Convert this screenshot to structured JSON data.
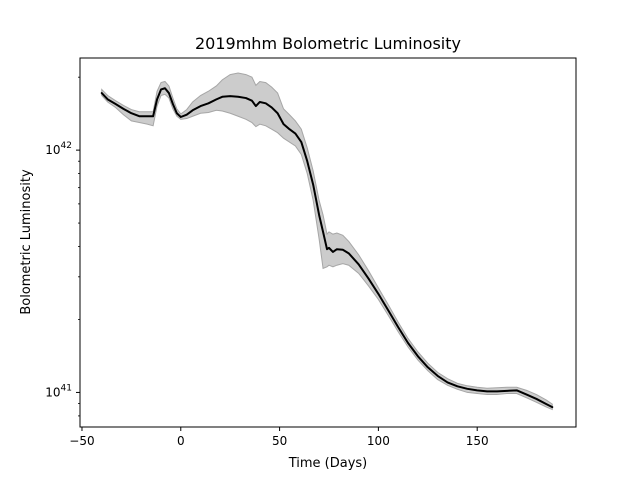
{
  "chart_data": {
    "type": "line",
    "title": "2019mhm Bolometric Luminosity",
    "xlabel": "Time (Days)",
    "ylabel": "Bolometric Luminosity",
    "xlim": [
      -51,
      200
    ],
    "ylim": [
      7.2e+40,
      2.4e+42
    ],
    "yscale": "log",
    "x_ticks": [
      -50,
      0,
      50,
      100,
      150
    ],
    "y_ticks": [
      {
        "value": 1e+41,
        "base": "10",
        "exp": "41"
      },
      {
        "value": 1e+42,
        "base": "10",
        "exp": "42"
      }
    ],
    "grid": false,
    "line_color": "#000000",
    "band_color": "#cccccc",
    "band_edge_color": "#a6a6a6",
    "series": [
      {
        "x": [
          -40,
          -37,
          -33,
          -29,
          -25,
          -21,
          -17,
          -14,
          -12,
          -10,
          -8,
          -6,
          -4,
          -2,
          0,
          3,
          6,
          10,
          14,
          18,
          21,
          25,
          29,
          33,
          36,
          38,
          40,
          43,
          46,
          49,
          52,
          55,
          58,
          61,
          64,
          67,
          70,
          72,
          74,
          75,
          77,
          79,
          82,
          85,
          90,
          95,
          100,
          105,
          110,
          115,
          120,
          125,
          130,
          135,
          140,
          145,
          150,
          155,
          160,
          165,
          170,
          175,
          180,
          185,
          188
        ],
        "y": [
          1.72e+42,
          1.62e+42,
          1.55e+42,
          1.48e+42,
          1.42e+42,
          1.38e+42,
          1.38e+42,
          1.38e+42,
          1.62e+42,
          1.78e+42,
          1.8e+42,
          1.72e+42,
          1.55e+42,
          1.42e+42,
          1.37e+42,
          1.4e+42,
          1.46e+42,
          1.52e+42,
          1.56e+42,
          1.62e+42,
          1.66e+42,
          1.67e+42,
          1.66e+42,
          1.64e+42,
          1.6e+42,
          1.52e+42,
          1.58e+42,
          1.56e+42,
          1.5e+42,
          1.42e+42,
          1.28e+42,
          1.22e+42,
          1.17e+42,
          1.08e+42,
          9e+41,
          7.2e+41,
          5.4e+41,
          4.6e+41,
          3.9e+41,
          3.95e+41,
          3.8e+41,
          3.9e+41,
          3.88e+41,
          3.75e+41,
          3.38e+41,
          2.95e+41,
          2.55e+41,
          2.18e+41,
          1.86e+41,
          1.6e+41,
          1.41e+41,
          1.27e+41,
          1.17e+41,
          1.1e+41,
          1.06e+41,
          1.035e+41,
          1.02e+41,
          1.01e+41,
          1.01e+41,
          1.015e+41,
          1.02e+41,
          9.8e+40,
          9.4e+40,
          8.95e+40,
          8.7e+40
        ],
        "lower": [
          1.68e+42,
          1.58e+42,
          1.5e+42,
          1.4e+42,
          1.32e+42,
          1.3e+42,
          1.28e+42,
          1.26e+42,
          1.52e+42,
          1.68e+42,
          1.7e+42,
          1.64e+42,
          1.48e+42,
          1.38e+42,
          1.34e+42,
          1.35e+42,
          1.38e+42,
          1.42e+42,
          1.43e+42,
          1.46e+42,
          1.45e+42,
          1.42e+42,
          1.38e+42,
          1.34e+42,
          1.3e+42,
          1.25e+42,
          1.28e+42,
          1.26e+42,
          1.22e+42,
          1.18e+42,
          1.12e+42,
          1.08e+42,
          1.04e+42,
          9.6e+41,
          8e+41,
          6.2e+41,
          4.3e+41,
          3.25e+41,
          3.3e+41,
          3.35e+41,
          3.3e+41,
          3.35e+41,
          3.4e+41,
          3.35e+41,
          3.1e+41,
          2.75e+41,
          2.42e+41,
          2.08e+41,
          1.78e+41,
          1.54e+41,
          1.36e+41,
          1.23e+41,
          1.13e+41,
          1.07e+41,
          1.03e+41,
          1e+41,
          9.9e+40,
          9.8e+40,
          9.8e+40,
          9.9e+40,
          9.9e+40,
          9.5e+40,
          9.1e+40,
          8.7e+40,
          8.5e+40
        ],
        "upper": [
          1.78e+42,
          1.68e+42,
          1.6e+42,
          1.53e+42,
          1.47e+42,
          1.44e+42,
          1.44e+42,
          1.44e+42,
          1.75e+42,
          1.9e+42,
          1.92e+42,
          1.84e+42,
          1.64e+42,
          1.48e+42,
          1.41e+42,
          1.47e+42,
          1.58e+42,
          1.68e+42,
          1.75e+42,
          1.84e+42,
          1.95e+42,
          2.05e+42,
          2.08e+42,
          2.05e+42,
          2e+42,
          1.85e+42,
          1.92e+42,
          1.9e+42,
          1.82e+42,
          1.72e+42,
          1.48e+42,
          1.4e+42,
          1.32e+42,
          1.22e+42,
          1.02e+42,
          8.2e+41,
          6.2e+41,
          5.4e+41,
          4.5e+41,
          4.6e+41,
          4.5e+41,
          4.55e+41,
          4.45e+41,
          4.2e+41,
          3.7e+41,
          3.18e+41,
          2.7e+41,
          2.3e+41,
          1.95e+41,
          1.67e+41,
          1.47e+41,
          1.32e+41,
          1.21e+41,
          1.14e+41,
          1.09e+41,
          1.065e+41,
          1.05e+41,
          1.04e+41,
          1.045e+41,
          1.05e+41,
          1.05e+41,
          1.02e+41,
          9.8e+40,
          9.3e+40,
          8.95e+40
        ]
      }
    ]
  }
}
